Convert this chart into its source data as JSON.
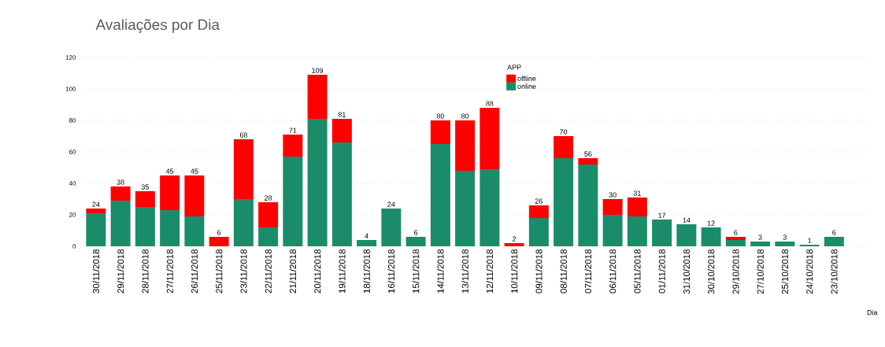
{
  "chart_data": {
    "type": "bar",
    "title": "Avaliações por Dia",
    "xlabel": "Dia",
    "legend_title": "APP",
    "stacked": true,
    "legend": "top",
    "grid": "y",
    "categories": [
      "30/11/2018",
      "29/11/2018",
      "28/11/2018",
      "27/11/2018",
      "26/11/2018",
      "25/11/2018",
      "23/11/2018",
      "22/11/2018",
      "21/11/2018",
      "20/11/2018",
      "19/11/2018",
      "18/11/2018",
      "16/11/2018",
      "15/11/2018",
      "14/11/2018",
      "13/11/2018",
      "12/11/2018",
      "10/11/2018",
      "09/11/2018",
      "08/11/2018",
      "07/11/2018",
      "06/11/2018",
      "05/11/2018",
      "01/11/2018",
      "31/10/2018",
      "30/10/2018",
      "29/10/2018",
      "27/10/2018",
      "25/10/2018",
      "24/10/2018",
      "23/10/2018"
    ],
    "series": [
      {
        "name": "online",
        "color": "#1a8c6a",
        "values": [
          21,
          29,
          25,
          23,
          19,
          0,
          30,
          12,
          57,
          81,
          66,
          4,
          24,
          6,
          65,
          48,
          49,
          0,
          18,
          56,
          52,
          20,
          19,
          17,
          14,
          12,
          4,
          3,
          3,
          1,
          6
        ]
      },
      {
        "name": "offline",
        "color": "#ff0000",
        "values": [
          3,
          9,
          10,
          22,
          26,
          6,
          38,
          16,
          14,
          28,
          15,
          0,
          0,
          0,
          15,
          32,
          39,
          2,
          8,
          14,
          4,
          10,
          12,
          0,
          0,
          0,
          2,
          0,
          0,
          0,
          0
        ]
      }
    ],
    "totals": [
      "24",
      "38",
      "35",
      "45",
      "45",
      "6",
      "68",
      "28",
      "71",
      "109",
      "81",
      "4",
      "24",
      "6",
      "80",
      "80",
      "88",
      "2",
      "26",
      "70",
      "56",
      "30",
      "31",
      "17",
      "14",
      "12",
      "6",
      "3",
      "3",
      "1",
      "6"
    ],
    "ylim": [
      0,
      120
    ],
    "yticks": [
      0,
      20,
      40,
      60,
      80,
      100,
      120
    ]
  }
}
